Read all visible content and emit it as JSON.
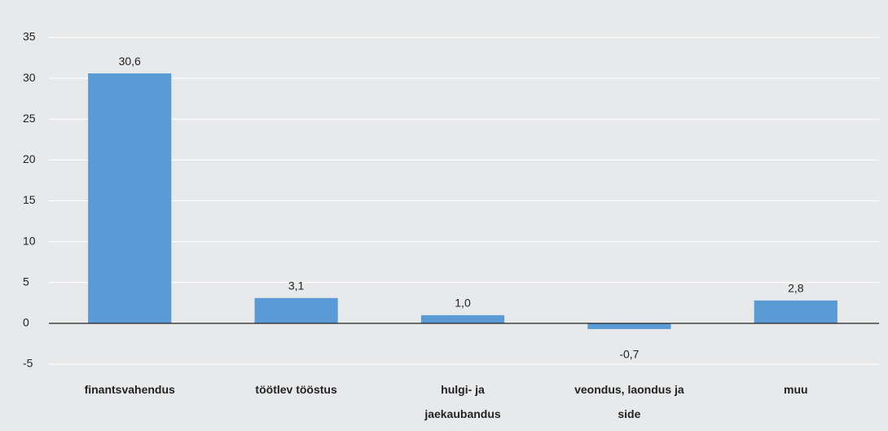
{
  "chart_data": {
    "type": "bar",
    "categories": [
      "finantsvahendus",
      "töötlev tööstus",
      "hulgi- ja jaekaubandus",
      "veondus, laondus ja side",
      "muu"
    ],
    "values": [
      30.6,
      3.1,
      1.0,
      -0.7,
      2.8
    ],
    "value_labels": [
      "30,6",
      "3,1",
      "1,0",
      "-0,7",
      "2,8"
    ],
    "color": "#5b9bd5",
    "ylim": [
      -5,
      35
    ],
    "yticks": [
      -5,
      0,
      5,
      10,
      15,
      20,
      25,
      30,
      35
    ],
    "grid": true
  }
}
